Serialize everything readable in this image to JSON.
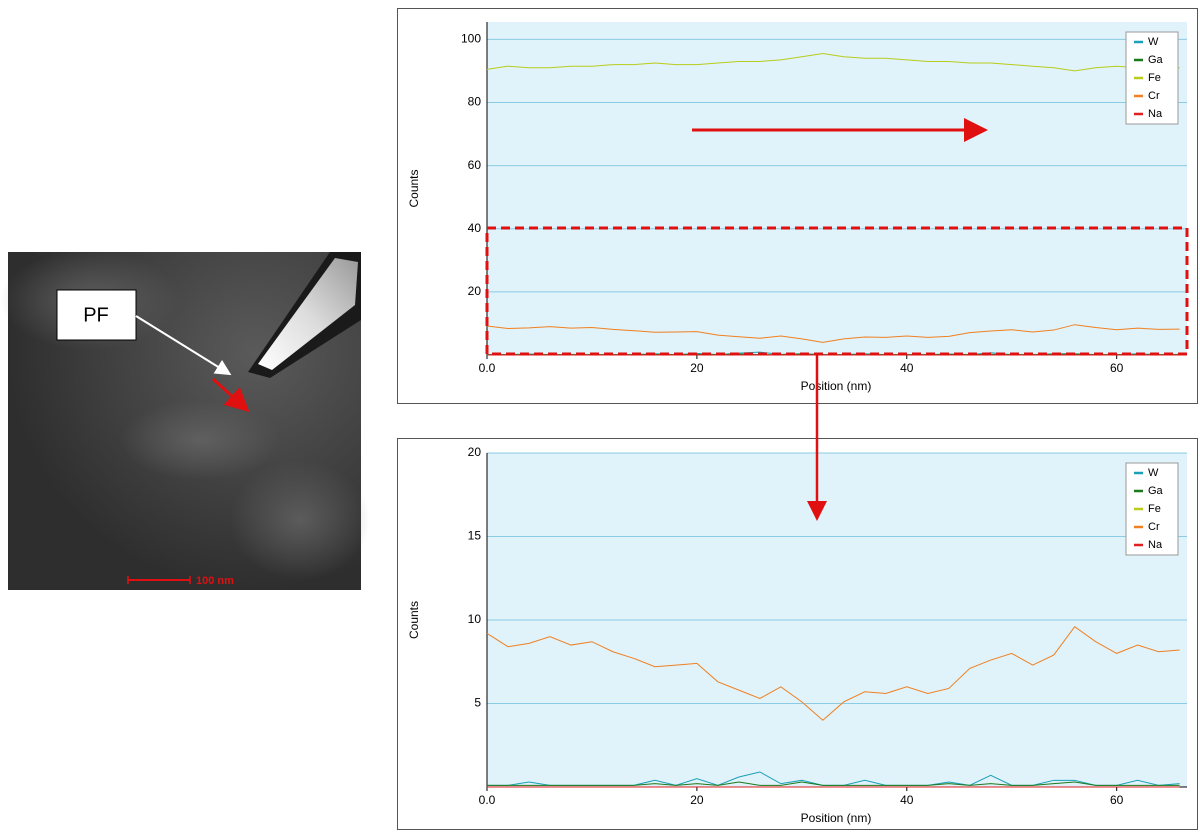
{
  "image": {
    "callout": "PF",
    "scale_bar": "100 nm"
  },
  "chart_data": [
    {
      "type": "line",
      "xlabel": "Position (nm)",
      "ylabel": "Counts",
      "x": [
        0,
        2,
        4,
        6,
        8,
        10,
        12,
        14,
        16,
        18,
        20,
        22,
        24,
        26,
        28,
        30,
        32,
        34,
        36,
        38,
        40,
        42,
        44,
        46,
        48,
        50,
        52,
        54,
        56,
        58,
        60,
        62,
        64,
        66
      ],
      "xlim": [
        0,
        66.7
      ],
      "ylim": [
        0,
        105.5
      ],
      "xticks": [
        {
          "value": 0,
          "label": "0.0"
        },
        20,
        40,
        60
      ],
      "yticks": [
        20,
        40,
        60,
        80,
        100
      ],
      "grid": true,
      "legend": "upper right",
      "series": [
        {
          "name": "W",
          "color": "#1aa0b8",
          "values": [
            0.1,
            0.1,
            0.3,
            0.1,
            0.1,
            0.1,
            0.1,
            0.1,
            0.4,
            0.1,
            0.5,
            0.1,
            0.6,
            0.9,
            0.2,
            0.4,
            0.1,
            0.1,
            0.4,
            0.1,
            0.1,
            0.1,
            0.3,
            0.1,
            0.7,
            0.1,
            0.1,
            0.4,
            0.4,
            0.1,
            0.1,
            0.4,
            0.1,
            0.2
          ]
        },
        {
          "name": "Ga",
          "color": "#1a7a1a",
          "values": [
            0.1,
            0.1,
            0.1,
            0.1,
            0.1,
            0.1,
            0.1,
            0.1,
            0.2,
            0.1,
            0.2,
            0.1,
            0.3,
            0.1,
            0.1,
            0.3,
            0.1,
            0.1,
            0.1,
            0.1,
            0.1,
            0.1,
            0.2,
            0.1,
            0.2,
            0.1,
            0.1,
            0.2,
            0.3,
            0.1,
            0.1,
            0.1,
            0.1,
            0.1
          ]
        },
        {
          "name": "Fe",
          "color": "#b8cc1a",
          "values": [
            90.5,
            91.5,
            91,
            91,
            91.5,
            91.5,
            92,
            92,
            92.5,
            92,
            92,
            92.5,
            93,
            93,
            93.5,
            94.5,
            95.5,
            94.5,
            94,
            94,
            93.5,
            93,
            93,
            92.5,
            92.5,
            92,
            91.5,
            91,
            90,
            91,
            91.5,
            91,
            91,
            91
          ]
        },
        {
          "name": "Cr",
          "color": "#f08020",
          "values": [
            9.2,
            8.4,
            8.6,
            9.0,
            8.5,
            8.7,
            8.1,
            7.7,
            7.2,
            7.3,
            7.4,
            6.3,
            5.8,
            5.3,
            6.0,
            5.1,
            4.0,
            5.1,
            5.7,
            5.6,
            6.0,
            5.6,
            5.9,
            7.1,
            7.6,
            8.0,
            7.3,
            7.9,
            9.6,
            8.7,
            8.0,
            8.5,
            8.1,
            8.2
          ]
        },
        {
          "name": "Na",
          "color": "#e02020",
          "values": [
            0,
            0,
            0,
            0,
            0,
            0,
            0,
            0,
            0,
            0,
            0,
            0,
            0,
            0,
            0,
            0,
            0,
            0,
            0,
            0,
            0,
            0,
            0,
            0,
            0,
            0,
            0,
            0,
            0,
            0,
            0,
            0,
            0,
            0
          ]
        }
      ]
    },
    {
      "type": "line",
      "xlabel": "Position (nm)",
      "ylabel": "Counts",
      "x": [
        0,
        2,
        4,
        6,
        8,
        10,
        12,
        14,
        16,
        18,
        20,
        22,
        24,
        26,
        28,
        30,
        32,
        34,
        36,
        38,
        40,
        42,
        44,
        46,
        48,
        50,
        52,
        54,
        56,
        58,
        60,
        62,
        64,
        66
      ],
      "xlim": [
        0,
        66.7
      ],
      "ylim": [
        0,
        20
      ],
      "xticks": [
        {
          "value": 0,
          "label": "0.0"
        },
        20,
        40,
        60
      ],
      "yticks": [
        5,
        10,
        15,
        20
      ],
      "grid": true,
      "legend": "upper right",
      "series": [
        {
          "name": "W",
          "color": "#1aa0b8",
          "values": [
            0.1,
            0.1,
            0.3,
            0.1,
            0.1,
            0.1,
            0.1,
            0.1,
            0.4,
            0.1,
            0.5,
            0.1,
            0.6,
            0.9,
            0.2,
            0.4,
            0.1,
            0.1,
            0.4,
            0.1,
            0.1,
            0.1,
            0.3,
            0.1,
            0.7,
            0.1,
            0.1,
            0.4,
            0.4,
            0.1,
            0.1,
            0.4,
            0.1,
            0.2
          ]
        },
        {
          "name": "Ga",
          "color": "#1a7a1a",
          "values": [
            0.1,
            0.1,
            0.1,
            0.1,
            0.1,
            0.1,
            0.1,
            0.1,
            0.2,
            0.1,
            0.2,
            0.1,
            0.3,
            0.1,
            0.1,
            0.3,
            0.1,
            0.1,
            0.1,
            0.1,
            0.1,
            0.1,
            0.2,
            0.1,
            0.2,
            0.1,
            0.1,
            0.2,
            0.3,
            0.1,
            0.1,
            0.1,
            0.1,
            0.1
          ]
        },
        {
          "name": "Fe",
          "color": "#b8cc1a",
          "values": [
            90.5,
            91.5,
            91,
            91,
            91.5,
            91.5,
            92,
            92,
            92.5,
            92,
            92,
            92.5,
            93,
            93,
            93.5,
            94.5,
            95.5,
            94.5,
            94,
            94,
            93.5,
            93,
            93,
            92.5,
            92.5,
            92,
            91.5,
            91,
            90,
            91,
            91.5,
            91,
            91,
            91
          ]
        },
        {
          "name": "Cr",
          "color": "#f08020",
          "values": [
            9.2,
            8.4,
            8.6,
            9.0,
            8.5,
            8.7,
            8.1,
            7.7,
            7.2,
            7.3,
            7.4,
            6.3,
            5.8,
            5.3,
            6.0,
            5.1,
            4.0,
            5.1,
            5.7,
            5.6,
            6.0,
            5.6,
            5.9,
            7.1,
            7.6,
            8.0,
            7.3,
            7.9,
            9.6,
            8.7,
            8.0,
            8.5,
            8.1,
            8.2
          ]
        },
        {
          "name": "Na",
          "color": "#e02020",
          "values": [
            0,
            0,
            0,
            0,
            0,
            0,
            0,
            0,
            0,
            0,
            0,
            0,
            0,
            0,
            0,
            0,
            0,
            0,
            0,
            0,
            0,
            0,
            0,
            0,
            0,
            0,
            0,
            0,
            0,
            0,
            0,
            0,
            0,
            0
          ]
        }
      ]
    }
  ]
}
